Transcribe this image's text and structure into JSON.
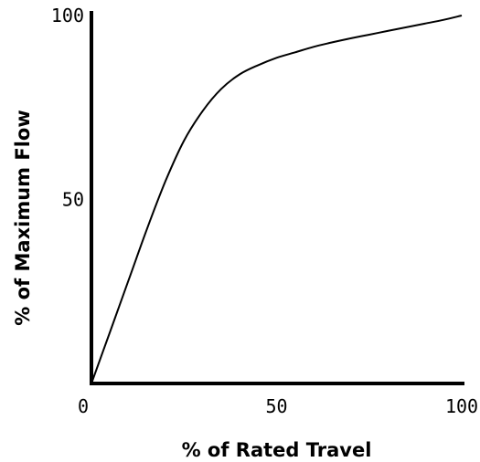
{
  "chart_data": {
    "type": "line",
    "title": "",
    "xlabel": "% of Rated Travel",
    "ylabel": "% of Maximum Flow",
    "xlim": [
      0,
      100
    ],
    "ylim": [
      0,
      100
    ],
    "x_ticks": [
      0,
      50,
      100
    ],
    "y_ticks": [
      50,
      100
    ],
    "x_tick_labels": [
      "0",
      "50",
      "100"
    ],
    "y_tick_labels": [
      "50",
      "100"
    ],
    "grid": false,
    "legend": "none",
    "series": [
      {
        "line_color": "#000000",
        "x": [
          0,
          5,
          10,
          15,
          20,
          25,
          30,
          35,
          40,
          45,
          50,
          55,
          60,
          65,
          70,
          75,
          80,
          85,
          90,
          95,
          100
        ],
        "y": [
          0,
          14,
          28,
          42,
          55,
          66,
          74,
          80,
          84,
          86.5,
          88.5,
          90,
          91.5,
          92.7,
          93.8,
          94.8,
          95.8,
          96.8,
          97.8,
          98.8,
          100
        ]
      }
    ]
  }
}
